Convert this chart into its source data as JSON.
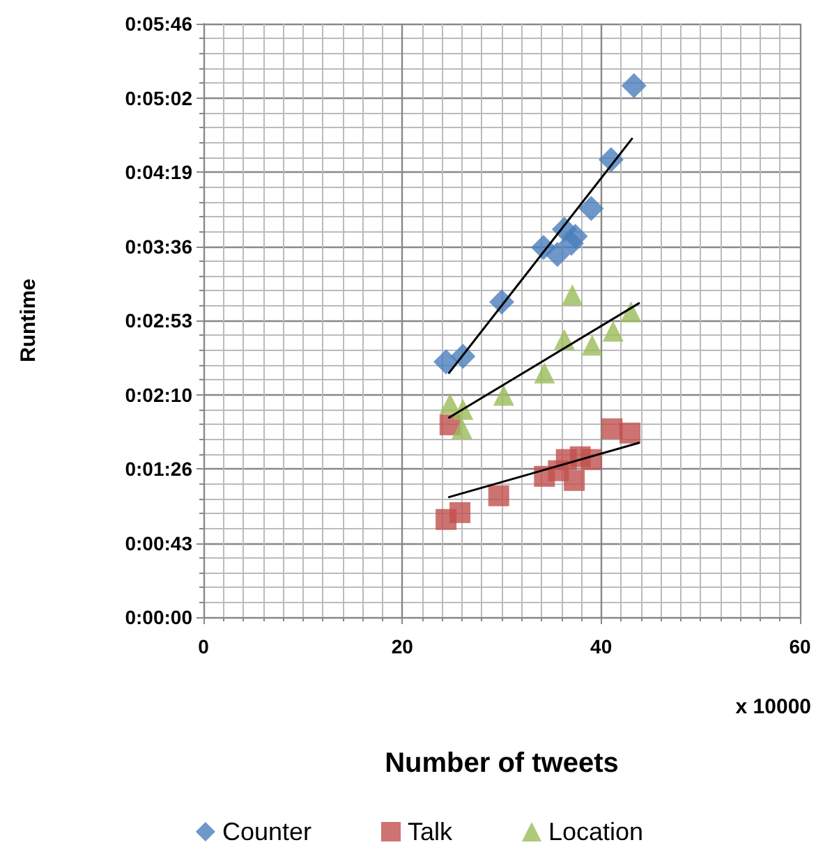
{
  "chart_data": {
    "type": "scatter",
    "xlabel": "Number of tweets",
    "ylabel": "Runtime",
    "annotations": [
      "x 10000"
    ],
    "xlim": [
      0,
      60
    ],
    "xticks": [
      0,
      20,
      40,
      60
    ],
    "ylim": [
      0,
      345.6
    ],
    "yticks": [
      {
        "value": 0,
        "label": "0:00:00"
      },
      {
        "value": 43.2,
        "label": "0:00:43"
      },
      {
        "value": 86.4,
        "label": "0:01:26"
      },
      {
        "value": 129.6,
        "label": "0:02:10"
      },
      {
        "value": 172.8,
        "label": "0:02:53"
      },
      {
        "value": 216,
        "label": "0:03:36"
      },
      {
        "value": 259.2,
        "label": "0:04:19"
      },
      {
        "value": 302.4,
        "label": "0:05:02"
      },
      {
        "value": 345.6,
        "label": "0:05:46"
      }
    ],
    "grid": true,
    "legend": "bottom",
    "series": [
      {
        "name": "Counter",
        "color": "#4a7ebb",
        "marker": "diamond",
        "x": [
          24.4,
          26.1,
          30.0,
          34.2,
          35.6,
          36.3,
          37.0,
          37.4,
          39.0,
          41.0,
          43.3
        ],
        "values": [
          148.7,
          151.9,
          183.6,
          215.3,
          211.2,
          225.8,
          217.7,
          221.8,
          238.0,
          266.4,
          309.5
        ]
      },
      {
        "name": "Talk",
        "color": "#c0504d",
        "marker": "square",
        "x": [
          24.4,
          24.8,
          25.8,
          29.7,
          34.3,
          35.7,
          36.5,
          37.3,
          37.9,
          39.0,
          41.1,
          42.9
        ],
        "values": [
          56.9,
          112,
          60.9,
          70.7,
          82.0,
          85.3,
          91.8,
          79.6,
          93.4,
          91.8,
          109.7,
          107.2
        ]
      },
      {
        "name": "Location",
        "color": "#9bbb59",
        "marker": "triangle",
        "x": [
          24.8,
          26.1,
          26.0,
          30.2,
          34.3,
          36.3,
          37.1,
          39.1,
          41.2,
          43.0
        ],
        "values": [
          124.3,
          121.0,
          109.7,
          129.2,
          142.2,
          161.7,
          187.7,
          158.4,
          166.5,
          177.9
        ]
      },
      {
        "type": "line",
        "color": "#000000",
        "marker": "none",
        "x": [
          24.7,
          43.1
        ],
        "values": [
          142.2,
          278.6
        ]
      },
      {
        "type": "line",
        "color": "#000000",
        "marker": "none",
        "x": [
          24.7,
          43.8
        ],
        "values": [
          69.9,
          101.5
        ]
      },
      {
        "type": "line",
        "color": "#000000",
        "marker": "none",
        "x": [
          24.7,
          43.8
        ],
        "values": [
          116.2,
          182.8
        ]
      }
    ]
  }
}
